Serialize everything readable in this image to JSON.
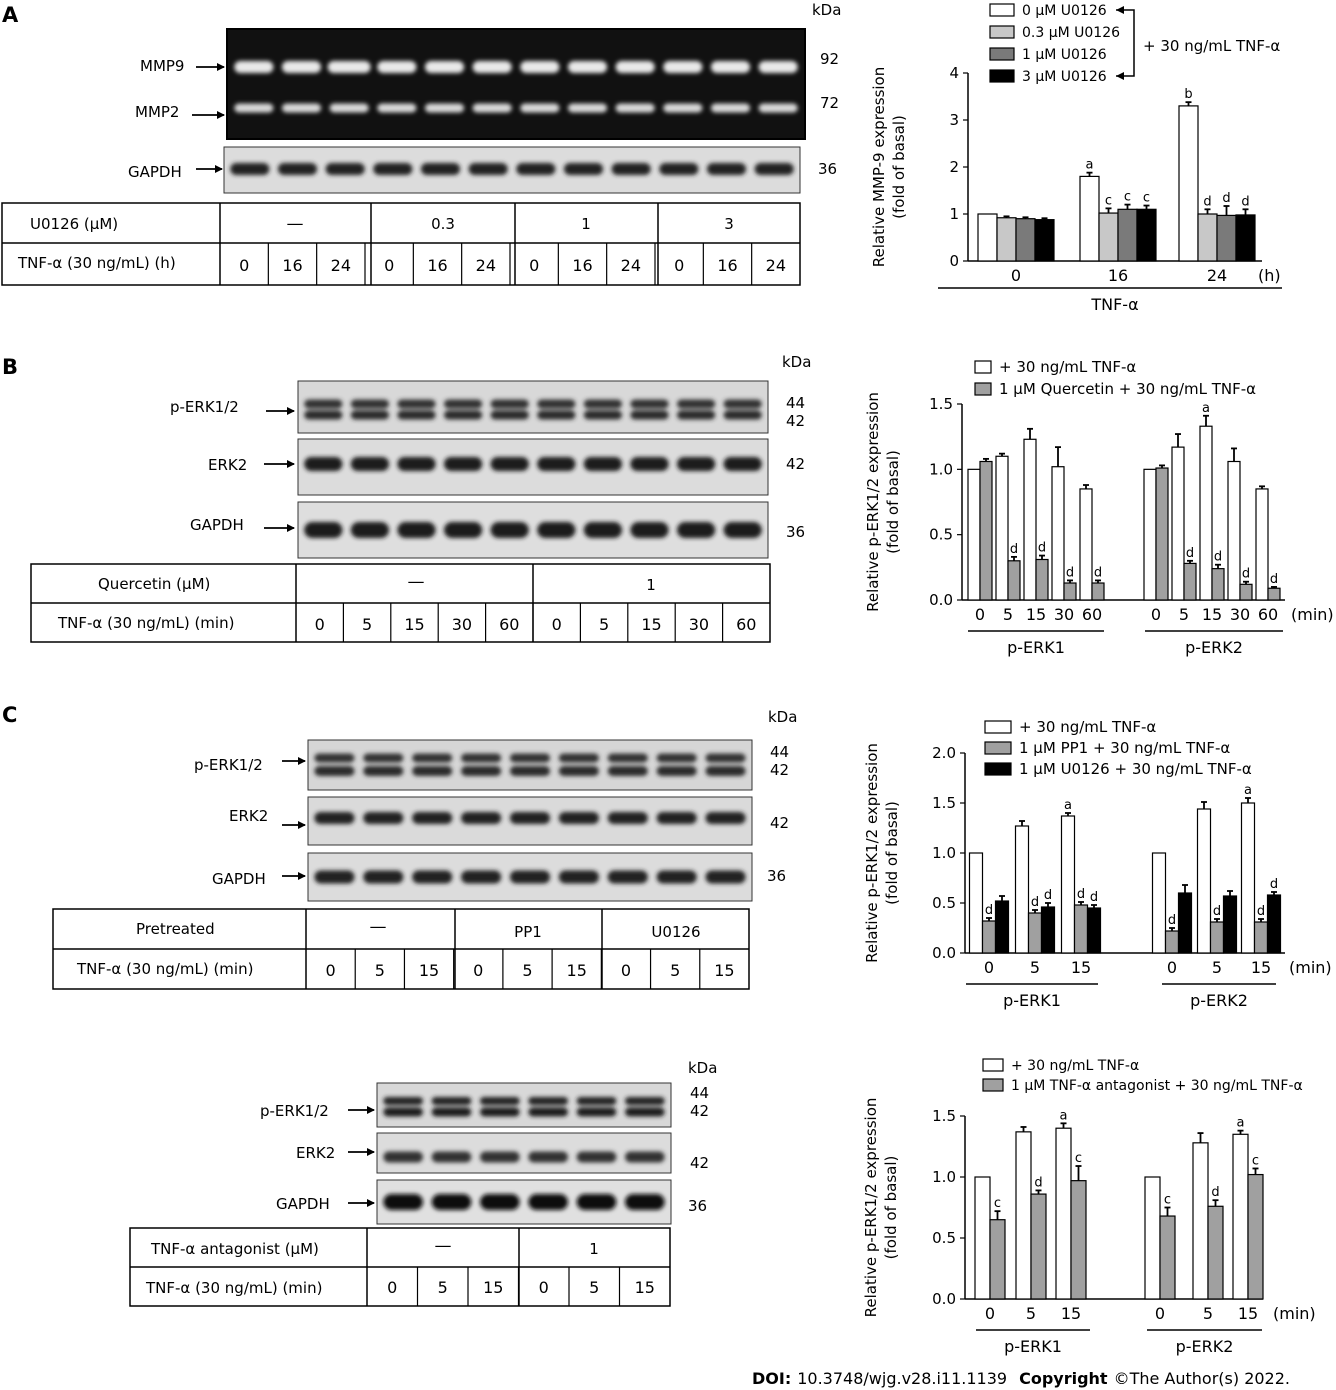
{
  "panels": {
    "A": {
      "letter": "A",
      "kda": "kDa",
      "bands": [
        {
          "label": "MMP9",
          "kda": "92"
        },
        {
          "label": "MMP2",
          "kda": "72"
        },
        {
          "label": "GAPDH",
          "kda": "36"
        }
      ],
      "table": {
        "row1_label": "U0126 (μM)",
        "groups": [
          "—",
          "0.3",
          "1",
          "3"
        ],
        "row2_label": "TNF-α (30 ng/mL) (h)",
        "times": [
          "0",
          "16",
          "24",
          "0",
          "16",
          "24",
          "0",
          "16",
          "24",
          "0",
          "16",
          "24"
        ]
      }
    },
    "B": {
      "letter": "B",
      "kda": "kDa",
      "bands": [
        {
          "label": "p-ERK1/2",
          "kda": "44",
          "kda2": "42"
        },
        {
          "label": "ERK2",
          "kda": "42"
        },
        {
          "label": "GAPDH",
          "kda": "36"
        }
      ],
      "table": {
        "row1_label": "Quercetin (μM)",
        "groups": [
          "—",
          "1"
        ],
        "row2_label": "TNF-α (30 ng/mL) (min)",
        "times": [
          "0",
          "5",
          "15",
          "30",
          "60",
          "0",
          "5",
          "15",
          "30",
          "60"
        ]
      }
    },
    "C1": {
      "letter": "C",
      "kda": "kDa",
      "bands": [
        {
          "label": "p-ERK1/2",
          "kda": "44",
          "kda2": "42"
        },
        {
          "label": "ERK2",
          "kda": "42"
        },
        {
          "label": "GAPDH",
          "kda": "36"
        }
      ],
      "table": {
        "row1_label": "Pretreated",
        "groups": [
          "—",
          "PP1",
          "U0126"
        ],
        "row2_label": "TNF-α (30 ng/mL) (min)",
        "times": [
          "0",
          "5",
          "15",
          "0",
          "5",
          "15",
          "0",
          "5",
          "15"
        ]
      }
    },
    "C2": {
      "kda": "kDa",
      "bands": [
        {
          "label": "p-ERK1/2",
          "kda": "44",
          "kda2": "42"
        },
        {
          "label": "ERK2",
          "kda": "42"
        },
        {
          "label": "GAPDH",
          "kda": "36"
        }
      ],
      "table": {
        "row1_label": "TNF-α antagonist (μM)",
        "groups": [
          "—",
          "1"
        ],
        "row2_label": "TNF-α (30 ng/mL) (min)",
        "times": [
          "0",
          "5",
          "15",
          "0",
          "5",
          "15"
        ]
      }
    }
  },
  "footer": {
    "doi_label": "DOI:",
    "doi": "10.3748/wjg.v28.i11.1139",
    "copyright_label": "Copyright",
    "copyright": "©The Author(s) 2022."
  },
  "chart_data": [
    {
      "id": "A",
      "type": "bar",
      "ylabel": "Relative MMP-9 expression",
      "ylabel2": "(fold of basal)",
      "xgroup_label": "TNF-α",
      "unit": "(h)",
      "ylim": [
        0,
        4
      ],
      "yticks": [
        "0",
        "1",
        "2",
        "3",
        "4"
      ],
      "categories": [
        "0",
        "16",
        "24"
      ],
      "legend_note": "+ 30 ng/mL TNF-α",
      "colors": [
        "#ffffff",
        "#c8c8c8",
        "#7a7a7a",
        "#000000"
      ],
      "series": [
        {
          "name": "0 μM U0126",
          "values": [
            1.0,
            1.8,
            3.3
          ],
          "err": [
            0,
            0.08,
            0.08
          ],
          "sig": [
            "",
            "a",
            "b"
          ]
        },
        {
          "name": "0.3 μM U0126",
          "values": [
            0.92,
            1.02,
            1.0
          ],
          "err": [
            0.03,
            0.1,
            0.1
          ],
          "sig": [
            "",
            "c",
            "d"
          ]
        },
        {
          "name": "1 μM U0126",
          "values": [
            0.9,
            1.1,
            0.97
          ],
          "err": [
            0.03,
            0.1,
            0.2
          ],
          "sig": [
            "",
            "c",
            "d"
          ]
        },
        {
          "name": "3 μM U0126",
          "values": [
            0.88,
            1.1,
            0.98
          ],
          "err": [
            0.03,
            0.08,
            0.12
          ],
          "sig": [
            "",
            "c",
            "d"
          ]
        }
      ]
    },
    {
      "id": "B",
      "type": "bar",
      "ylabel": "Relative p-ERK1/2 expression",
      "ylabel2": "(fold of basal)",
      "unit": "(min)",
      "ylim": [
        0,
        1.5
      ],
      "yticks": [
        "0.0",
        "0.5",
        "1.0",
        "1.5"
      ],
      "groups": [
        "p-ERK1",
        "p-ERK2"
      ],
      "categories": [
        "0",
        "5",
        "15",
        "30",
        "60"
      ],
      "colors": [
        "#ffffff",
        "#a0a0a0"
      ],
      "series": [
        {
          "name": "+ 30 ng/mL TNF-α",
          "values": [
            [
              1.0,
              1.1,
              1.23,
              1.02,
              0.85
            ],
            [
              1.0,
              1.17,
              1.33,
              1.06,
              0.85
            ]
          ],
          "err": [
            [
              0,
              0.02,
              0.08,
              0.15,
              0.03
            ],
            [
              0,
              0.1,
              0.08,
              0.1,
              0.02
            ]
          ],
          "sig": [
            [
              "",
              "",
              "",
              "",
              ""
            ],
            [
              "",
              "",
              "a",
              "",
              ""
            ]
          ]
        },
        {
          "name": "1 μM Quercetin + 30 ng/mL TNF-α",
          "values": [
            [
              1.06,
              0.3,
              0.31,
              0.13,
              0.13
            ],
            [
              1.01,
              0.28,
              0.24,
              0.12,
              0.09
            ]
          ],
          "err": [
            [
              0.02,
              0.03,
              0.03,
              0.02,
              0.02
            ],
            [
              0.02,
              0.02,
              0.03,
              0.02,
              0.01
            ]
          ],
          "sig": [
            [
              "",
              "d",
              "d",
              "d",
              "d"
            ],
            [
              "",
              "d",
              "d",
              "d",
              "d"
            ]
          ]
        }
      ]
    },
    {
      "id": "C1",
      "type": "bar",
      "ylabel": "Relative p-ERK1/2 expression",
      "ylabel2": "(fold of basal)",
      "unit": "(min)",
      "ylim": [
        0,
        2.0
      ],
      "yticks": [
        "0.0",
        "0.5",
        "1.0",
        "1.5",
        "2.0"
      ],
      "groups": [
        "p-ERK1",
        "p-ERK2"
      ],
      "categories": [
        "0",
        "5",
        "15"
      ],
      "colors": [
        "#ffffff",
        "#a0a0a0",
        "#000000"
      ],
      "series": [
        {
          "name": "+ 30 ng/mL TNF-α",
          "values": [
            [
              1.0,
              1.27,
              1.37
            ],
            [
              1.0,
              1.44,
              1.5
            ]
          ],
          "err": [
            [
              0,
              0.05,
              0.03
            ],
            [
              0,
              0.07,
              0.05
            ]
          ],
          "sig": [
            [
              "",
              "",
              "a"
            ],
            [
              "",
              "",
              "a"
            ]
          ]
        },
        {
          "name": "1 μM PP1 + 30 ng/mL TNF-α",
          "values": [
            [
              0.32,
              0.4,
              0.48
            ],
            [
              0.22,
              0.31,
              0.31
            ]
          ],
          "err": [
            [
              0.03,
              0.03,
              0.03
            ],
            [
              0.03,
              0.03,
              0.03
            ]
          ],
          "sig": [
            [
              "d",
              "d",
              "d"
            ],
            [
              "d",
              "d",
              "d"
            ]
          ]
        },
        {
          "name": "1 μM U0126 + 30 ng/mL TNF-α",
          "values": [
            [
              0.52,
              0.46,
              0.45
            ],
            [
              0.6,
              0.57,
              0.58
            ]
          ],
          "err": [
            [
              0.05,
              0.04,
              0.03
            ],
            [
              0.08,
              0.05,
              0.03
            ]
          ],
          "sig": [
            [
              "",
              "d",
              "d"
            ],
            [
              "",
              "",
              "d"
            ]
          ]
        }
      ]
    },
    {
      "id": "C2",
      "type": "bar",
      "ylabel": "Relative p-ERK1/2 expression",
      "ylabel2": "(fold of basal)",
      "unit": "(min)",
      "ylim": [
        0,
        1.5
      ],
      "yticks": [
        "0.0",
        "0.5",
        "1.0",
        "1.5"
      ],
      "groups": [
        "p-ERK1",
        "p-ERK2"
      ],
      "categories": [
        "0",
        "5",
        "15"
      ],
      "colors": [
        "#ffffff",
        "#a0a0a0"
      ],
      "series": [
        {
          "name": "+ 30 ng/mL TNF-α",
          "values": [
            [
              1.0,
              1.37,
              1.4
            ],
            [
              1.0,
              1.28,
              1.35
            ]
          ],
          "err": [
            [
              0,
              0.04,
              0.04
            ],
            [
              0,
              0.08,
              0.03
            ]
          ],
          "sig": [
            [
              "",
              "",
              "a"
            ],
            [
              "",
              "",
              "a"
            ]
          ]
        },
        {
          "name": "1 μM TNF-α antagonist + 30 ng/mL TNF-α",
          "values": [
            [
              0.65,
              0.86,
              0.97
            ],
            [
              0.68,
              0.76,
              1.02
            ]
          ],
          "err": [
            [
              0.07,
              0.03,
              0.12
            ],
            [
              0.07,
              0.05,
              0.05
            ]
          ],
          "sig": [
            [
              "c",
              "d",
              "c"
            ],
            [
              "c",
              "d",
              "c"
            ]
          ]
        }
      ]
    }
  ]
}
